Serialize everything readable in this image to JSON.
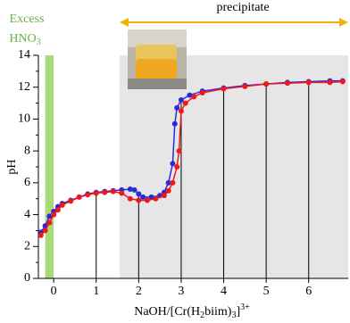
{
  "chart_data": {
    "type": "line",
    "ylabel": "pH",
    "xlabel_parts": [
      "NaOH/[Cr(H",
      "2",
      "biim)",
      "3",
      "]",
      "3+"
    ],
    "annotation_excess": [
      "Excess",
      "HNO",
      "3"
    ],
    "annotation_precipitate": "precipitate",
    "excess_span": [
      -0.2,
      0
    ],
    "precipitate_span": [
      1.55,
      6.93
    ],
    "xlim": [
      -0.36,
      6.93
    ],
    "xticks": [
      0,
      1,
      2,
      3,
      4,
      5,
      6
    ],
    "ylim": [
      0,
      14
    ],
    "yticks": [
      0,
      2,
      4,
      6,
      8,
      10,
      12,
      14
    ],
    "series": [
      {
        "color": "#2b2bd6",
        "x": [
          -0.3,
          -0.2,
          -0.1,
          0,
          0.1,
          0.2,
          0.4,
          0.6,
          0.8,
          1.0,
          1.2,
          1.4,
          1.6,
          1.8,
          1.9,
          2.0,
          2.1,
          2.3,
          2.5,
          2.6,
          2.7,
          2.8,
          2.85,
          2.9,
          3.0,
          3.2,
          3.5,
          4.0,
          4.5,
          5.0,
          5.5,
          6.0,
          6.5,
          6.8
        ],
        "values": [
          2.9,
          3.3,
          3.9,
          4.2,
          4.5,
          4.7,
          4.9,
          5.1,
          5.3,
          5.4,
          5.45,
          5.5,
          5.55,
          5.6,
          5.55,
          5.3,
          5.1,
          5.1,
          5.2,
          5.4,
          6.0,
          7.2,
          9.7,
          10.7,
          11.2,
          11.5,
          11.75,
          11.95,
          12.1,
          12.2,
          12.3,
          12.35,
          12.4,
          12.4
        ]
      },
      {
        "color": "#f01818",
        "x": [
          -0.3,
          -0.2,
          -0.1,
          0,
          0.1,
          0.2,
          0.4,
          0.6,
          0.8,
          1.0,
          1.2,
          1.4,
          1.6,
          1.8,
          2.0,
          2.2,
          2.4,
          2.6,
          2.7,
          2.8,
          2.9,
          2.95,
          3.0,
          3.1,
          3.3,
          3.5,
          4.0,
          4.5,
          5.0,
          5.5,
          6.0,
          6.5,
          6.8
        ],
        "values": [
          2.7,
          3.0,
          3.5,
          4.0,
          4.3,
          4.6,
          4.85,
          5.1,
          5.25,
          5.35,
          5.4,
          5.45,
          5.35,
          5.0,
          4.9,
          4.9,
          5.0,
          5.2,
          5.5,
          6.0,
          7.0,
          8.0,
          10.5,
          11.0,
          11.4,
          11.65,
          11.9,
          12.05,
          12.2,
          12.25,
          12.3,
          12.3,
          12.35
        ]
      }
    ]
  }
}
